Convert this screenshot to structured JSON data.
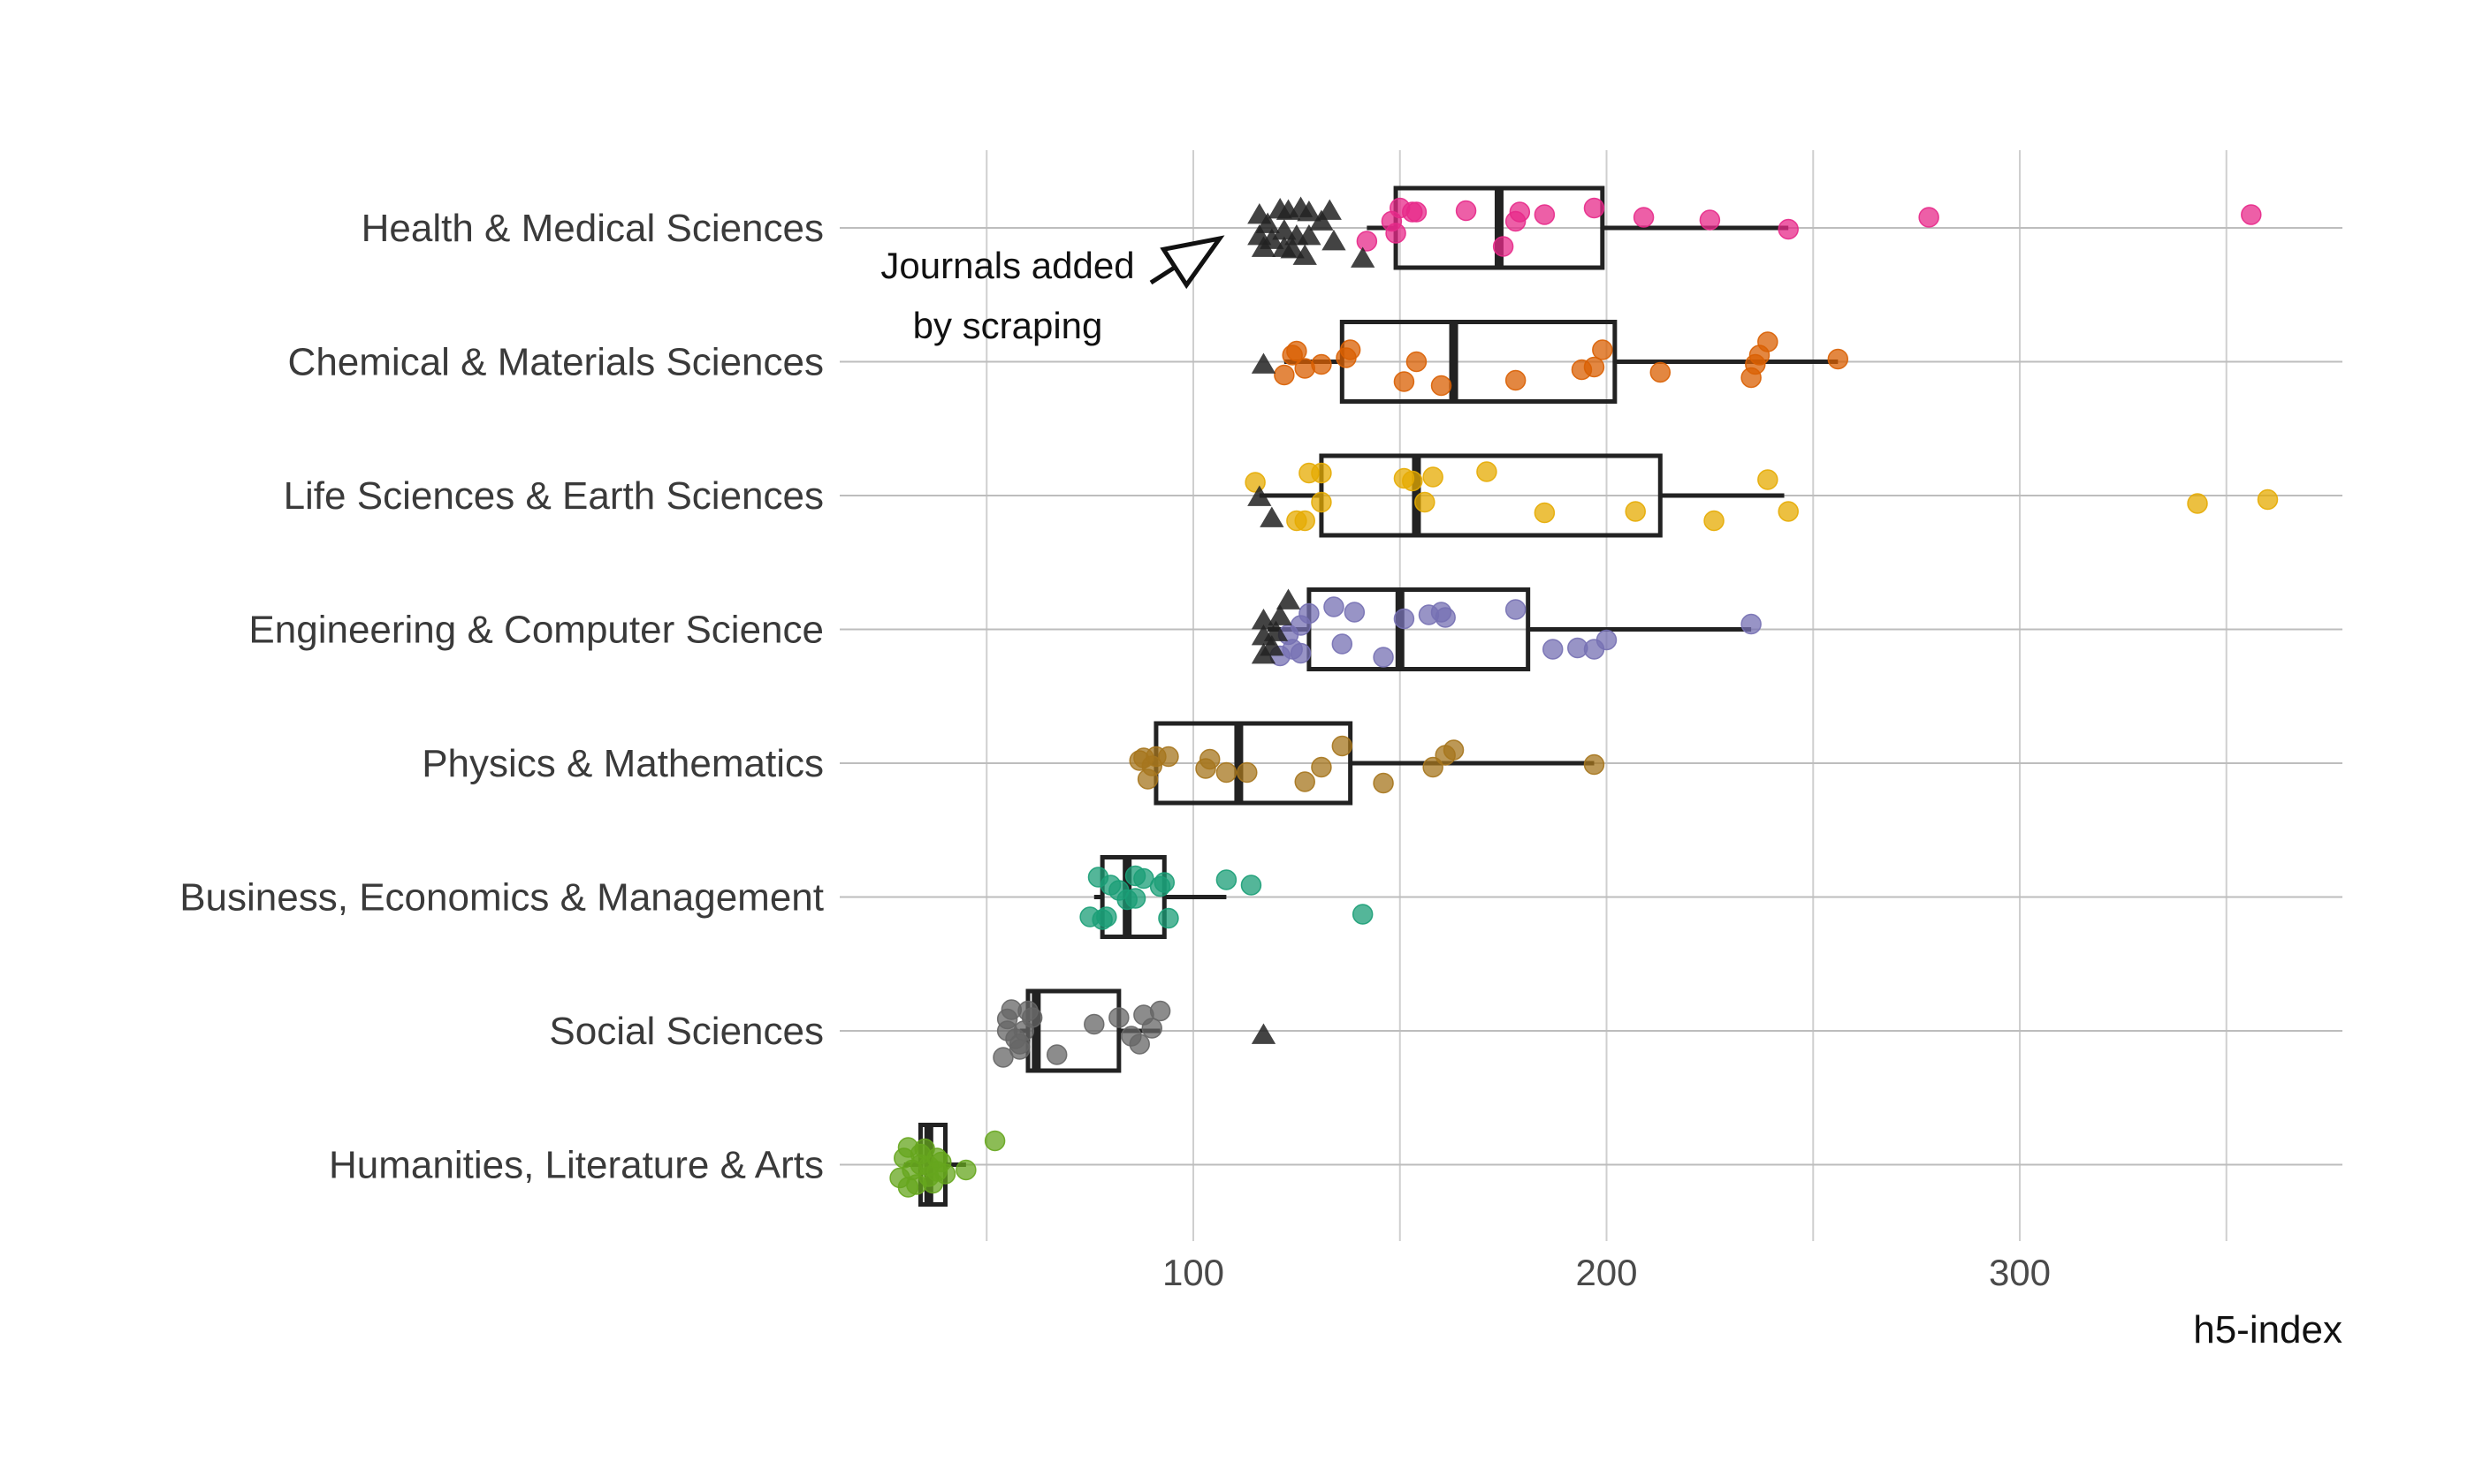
{
  "chart_data": {
    "type": "boxplot",
    "xlabel": "h5-index",
    "ylabel": "",
    "xlim": [
      20,
      375
    ],
    "xticks": [
      100,
      200,
      300
    ],
    "x_gridlines": [
      50,
      100,
      150,
      200,
      250,
      300,
      350
    ],
    "grid": true,
    "annotation": {
      "lines": [
        "Journals added",
        "by scraping"
      ],
      "points_to": {
        "x": 116,
        "category": "Health & Medical Sciences"
      }
    },
    "categories": [
      "Health & Medical Sciences",
      "Chemical & Materials Sciences",
      "Life Sciences & Earth Sciences",
      "Engineering & Computer Science",
      "Physics & Mathematics",
      "Business, Economics & Management",
      "Social Sciences",
      "Humanities, Literature & Arts"
    ],
    "colors": [
      "#e7298a",
      "#d95f02",
      "#e6ab02",
      "#7570b3",
      "#a6761d",
      "#1b9e77",
      "#666666",
      "#66a61e"
    ],
    "scraped_color": "#222222",
    "boxes": [
      {
        "category": "Health & Medical Sciences",
        "lower_whisker": 142,
        "q1": 149,
        "median": 174,
        "q3": 199,
        "upper_whisker": 244
      },
      {
        "category": "Chemical & Materials Sciences",
        "lower_whisker": 122,
        "q1": 136,
        "median": 163,
        "q3": 202,
        "upper_whisker": 256
      },
      {
        "category": "Life Sciences & Earth Sciences",
        "lower_whisker": 116,
        "q1": 131,
        "median": 154,
        "q3": 213,
        "upper_whisker": 243
      },
      {
        "category": "Engineering & Computer Science",
        "lower_whisker": 118,
        "q1": 128,
        "median": 150,
        "q3": 181,
        "upper_whisker": 235
      },
      {
        "category": "Physics & Mathematics",
        "lower_whisker": 90,
        "q1": 91,
        "median": 111,
        "q3": 138,
        "upper_whisker": 197
      },
      {
        "category": "Business, Economics & Management",
        "lower_whisker": 76,
        "q1": 78,
        "median": 84,
        "q3": 93,
        "upper_whisker": 108
      },
      {
        "category": "Social Sciences",
        "lower_whisker": 58,
        "q1": 60,
        "median": 62,
        "q3": 82,
        "upper_whisker": 92
      },
      {
        "category": "Humanities, Literature & Arts",
        "lower_whisker": 30,
        "q1": 34,
        "median": 36,
        "q3": 40,
        "upper_whisker": 45
      }
    ],
    "points": [
      [
        [
          142,
          0.1
        ],
        [
          148,
          -0.05
        ],
        [
          149,
          0.04
        ],
        [
          150,
          -0.15
        ],
        [
          153,
          -0.12
        ],
        [
          154,
          -0.12
        ],
        [
          166,
          -0.13
        ],
        [
          175,
          0.14
        ],
        [
          178,
          -0.05
        ],
        [
          179,
          -0.12
        ],
        [
          185,
          -0.1
        ],
        [
          197,
          -0.15
        ],
        [
          209,
          -0.08
        ],
        [
          225,
          -0.06
        ],
        [
          244,
          0.01
        ],
        [
          278,
          -0.08
        ],
        [
          356,
          -0.1
        ]
      ],
      [
        [
          122,
          0.1
        ],
        [
          124,
          -0.05
        ],
        [
          125,
          -0.08
        ],
        [
          127,
          0.05
        ],
        [
          131,
          0.02
        ],
        [
          137,
          -0.03
        ],
        [
          138,
          -0.09
        ],
        [
          151,
          0.15
        ],
        [
          154,
          0.0
        ],
        [
          160,
          0.18
        ],
        [
          178,
          0.14
        ],
        [
          194,
          0.06
        ],
        [
          197,
          0.04
        ],
        [
          199,
          -0.09
        ],
        [
          213,
          0.08
        ],
        [
          235,
          0.12
        ],
        [
          237,
          -0.05
        ],
        [
          236,
          0.02
        ],
        [
          239,
          -0.15
        ],
        [
          256,
          -0.02
        ]
      ],
      [
        [
          115,
          -0.1
        ],
        [
          125,
          0.19
        ],
        [
          127,
          0.19
        ],
        [
          128,
          -0.17
        ],
        [
          131,
          0.05
        ],
        [
          131,
          -0.17
        ],
        [
          151,
          -0.13
        ],
        [
          153,
          -0.11
        ],
        [
          156,
          0.05
        ],
        [
          158,
          -0.14
        ],
        [
          171,
          -0.18
        ],
        [
          185,
          0.13
        ],
        [
          207,
          0.12
        ],
        [
          226,
          0.19
        ],
        [
          239,
          -0.12
        ],
        [
          244,
          0.12
        ],
        [
          343,
          0.06
        ],
        [
          360,
          0.03
        ]
      ],
      [
        [
          121,
          0.2
        ],
        [
          123,
          0.04
        ],
        [
          124,
          0.15
        ],
        [
          126,
          0.18
        ],
        [
          126,
          -0.03
        ],
        [
          128,
          -0.12
        ],
        [
          134,
          -0.17
        ],
        [
          136,
          0.11
        ],
        [
          139,
          -0.13
        ],
        [
          146,
          0.21
        ],
        [
          151,
          -0.08
        ],
        [
          157,
          -0.11
        ],
        [
          160,
          -0.13
        ],
        [
          161,
          -0.09
        ],
        [
          178,
          -0.15
        ],
        [
          187,
          0.15
        ],
        [
          193,
          0.14
        ],
        [
          197,
          0.15
        ],
        [
          200,
          0.08
        ],
        [
          235,
          -0.04
        ]
      ],
      [
        [
          87,
          -0.02
        ],
        [
          88,
          -0.04
        ],
        [
          89,
          0.12
        ],
        [
          90,
          0.02
        ],
        [
          91,
          -0.05
        ],
        [
          94,
          -0.05
        ],
        [
          103,
          0.04
        ],
        [
          104,
          -0.03
        ],
        [
          108,
          0.07
        ],
        [
          113,
          0.07
        ],
        [
          127,
          0.14
        ],
        [
          131,
          0.03
        ],
        [
          136,
          -0.13
        ],
        [
          146,
          0.15
        ],
        [
          158,
          0.03
        ],
        [
          161,
          -0.06
        ],
        [
          163,
          -0.1
        ],
        [
          197,
          0.01
        ]
      ],
      [
        [
          75,
          0.15
        ],
        [
          77,
          -0.15
        ],
        [
          78,
          0.17
        ],
        [
          79,
          0.15
        ],
        [
          80,
          -0.09
        ],
        [
          82,
          -0.05
        ],
        [
          84,
          0.02
        ],
        [
          86,
          0.01
        ],
        [
          86,
          -0.16
        ],
        [
          88,
          -0.14
        ],
        [
          92,
          -0.08
        ],
        [
          93,
          -0.11
        ],
        [
          94,
          0.16
        ],
        [
          108,
          -0.13
        ],
        [
          114,
          -0.09
        ],
        [
          141,
          0.13
        ]
      ],
      [
        [
          54,
          0.2
        ],
        [
          55,
          -0.09
        ],
        [
          55,
          0.0
        ],
        [
          56,
          -0.16
        ],
        [
          57,
          0.06
        ],
        [
          58,
          0.1
        ],
        [
          58,
          0.14
        ],
        [
          59,
          0.0
        ],
        [
          60,
          -0.15
        ],
        [
          61,
          -0.1
        ],
        [
          67,
          0.18
        ],
        [
          76,
          -0.05
        ],
        [
          82,
          -0.1
        ],
        [
          85,
          0.04
        ],
        [
          87,
          0.1
        ],
        [
          88,
          -0.12
        ],
        [
          90,
          -0.02
        ],
        [
          92,
          -0.15
        ]
      ],
      [
        [
          29,
          0.1
        ],
        [
          30,
          -0.05
        ],
        [
          31,
          0.17
        ],
        [
          31,
          -0.13
        ],
        [
          32,
          0.04
        ],
        [
          33,
          0.15
        ],
        [
          34,
          0.0
        ],
        [
          34,
          -0.08
        ],
        [
          35,
          -0.12
        ],
        [
          36,
          0.09
        ],
        [
          36,
          0.01
        ],
        [
          37,
          0.14
        ],
        [
          38,
          0.05
        ],
        [
          38,
          -0.05
        ],
        [
          39,
          -0.02
        ],
        [
          40,
          0.07
        ],
        [
          45,
          0.04
        ],
        [
          52,
          -0.18
        ]
      ]
    ],
    "scraped_points": [
      [
        [
          116,
          -0.1
        ],
        [
          116,
          0.06
        ],
        [
          117,
          0.15
        ],
        [
          118,
          -0.03
        ],
        [
          119,
          0.09
        ],
        [
          121,
          -0.14
        ],
        [
          122,
          0.15
        ],
        [
          122,
          0.02
        ],
        [
          123,
          -0.13
        ],
        [
          124,
          0.16
        ],
        [
          125,
          0.06
        ],
        [
          126,
          -0.15
        ],
        [
          127,
          0.21
        ],
        [
          128,
          0.06
        ],
        [
          128,
          -0.12
        ],
        [
          131,
          -0.05
        ],
        [
          133,
          -0.13
        ],
        [
          134,
          0.1
        ],
        [
          141,
          0.23
        ]
      ],
      [
        [
          117,
          0.02
        ]
      ],
      [
        [
          116,
          0.01
        ],
        [
          119,
          0.17
        ]
      ],
      [
        [
          117,
          0.19
        ],
        [
          117,
          0.05
        ],
        [
          117,
          -0.07
        ],
        [
          119,
          0.13
        ],
        [
          120,
          0.02
        ],
        [
          121,
          -0.1
        ],
        [
          123,
          -0.22
        ]
      ],
      [],
      [],
      [
        [
          117,
          0.03
        ]
      ],
      []
    ]
  }
}
